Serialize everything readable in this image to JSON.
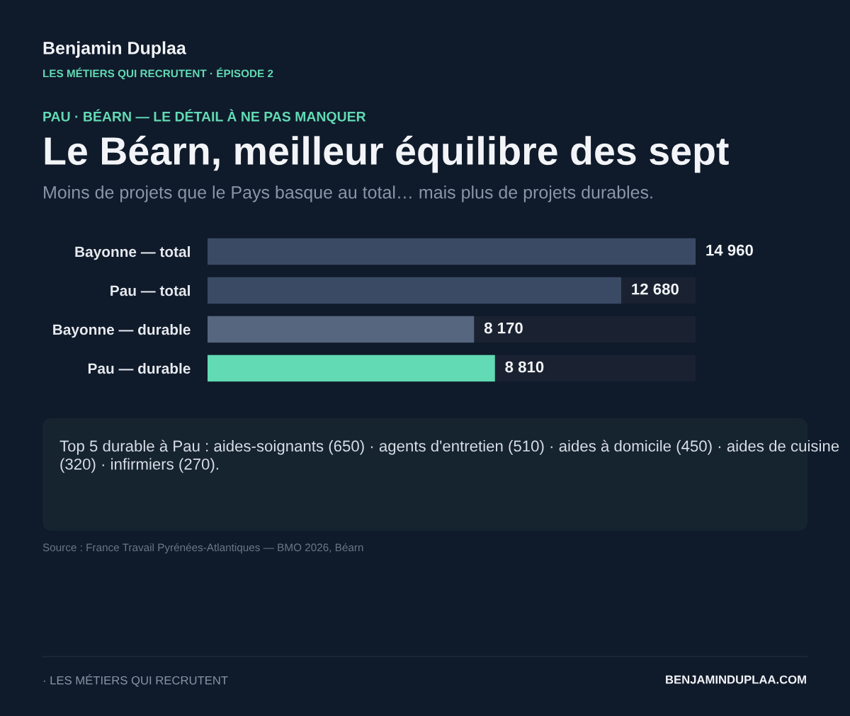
{
  "chart_data": {
    "type": "bar",
    "orientation": "horizontal",
    "title": "Le Béarn, meilleur équilibre des sept",
    "subtitle": "Moins de projets que le Pays basque au total… mais plus de projets durables.",
    "categories": [
      "Bayonne — total",
      "Pau — total",
      "Bayonne — durable",
      "Pau — durable"
    ],
    "values": [
      14960,
      12680,
      8170,
      8810
    ],
    "colors": [
      "#3b4a64",
      "#3b4a64",
      "#56667f",
      "#62dab4"
    ],
    "value_labels": [
      "14 960",
      "12 680",
      "8 170",
      "8 810"
    ],
    "annotations": [
      "Benjamin Duplaa",
      "LES MÉTIERS QUI RECRUTENT · ÉPISODE 2",
      "PAU · BÉARN — LE DÉTAIL À NE PAS MANQUER",
      "Top 5 durable à Pau : aides-soignants (650) · agents d'entretien (510) · aides à domicile (450) · aides de cuisine (320) · infirmiers (270).",
      "Source : France Travail Pyrénées-Atlantiques — BMO 2026, Béarn",
      "· LES MÉTIERS QUI RECRUTENT",
      "BENJAMINDUPLAA.COM"
    ],
    "legend": false,
    "grid": false
  }
}
